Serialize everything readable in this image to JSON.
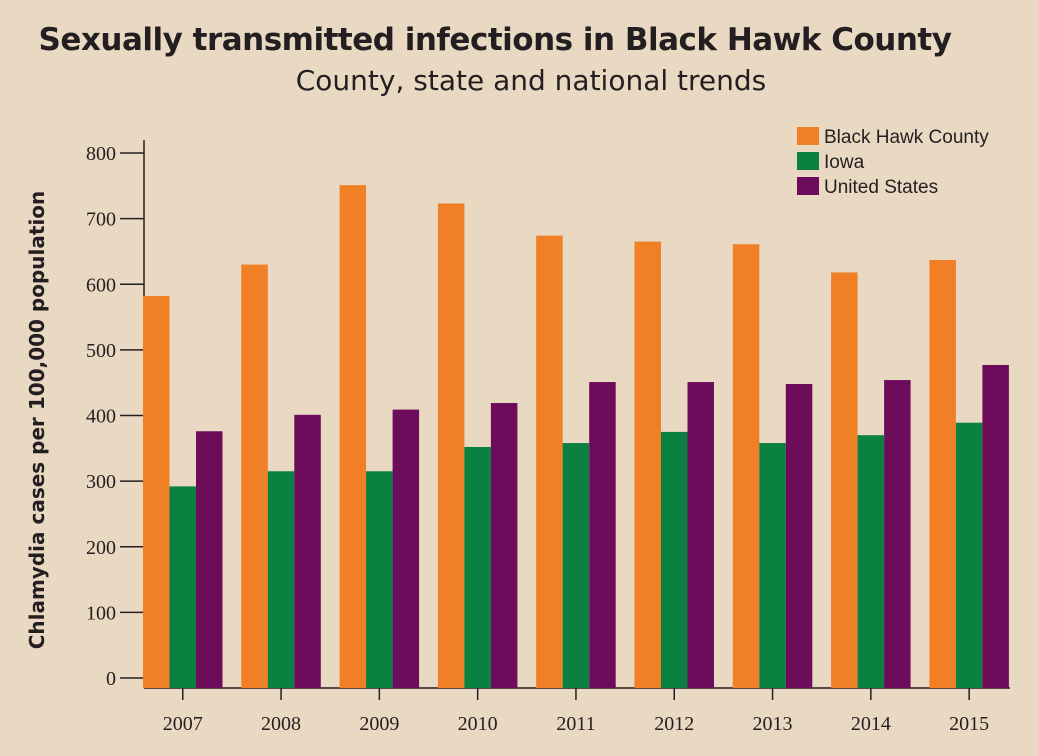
{
  "title": "Sexually transmitted infections in Black Hawk County",
  "subtitle": "County, state and national trends",
  "chart_data": {
    "type": "bar",
    "title": "Sexually transmitted infections in Black Hawk County",
    "subtitle": "County, state and national trends",
    "xlabel": "",
    "ylabel": "Chlamydia cases per 100,000 population",
    "ylim": [
      0,
      800
    ],
    "yticks": [
      0,
      100,
      200,
      300,
      400,
      500,
      600,
      700,
      800
    ],
    "categories": [
      "2007",
      "2008",
      "2009",
      "2010",
      "2011",
      "2012",
      "2013",
      "2014",
      "2015"
    ],
    "series": [
      {
        "name": "Black Hawk County",
        "color": "#f07f26",
        "values": [
          582,
          630,
          751,
          723,
          674,
          665,
          661,
          618,
          637
        ]
      },
      {
        "name": "Iowa",
        "color": "#0a8041",
        "values": [
          292,
          315,
          315,
          352,
          358,
          375,
          358,
          370,
          389
        ]
      },
      {
        "name": "United States",
        "color": "#6e0c5c",
        "values": [
          376,
          401,
          409,
          419,
          451,
          451,
          448,
          454,
          477
        ]
      }
    ],
    "legend_position": "top-right",
    "grid": false
  }
}
